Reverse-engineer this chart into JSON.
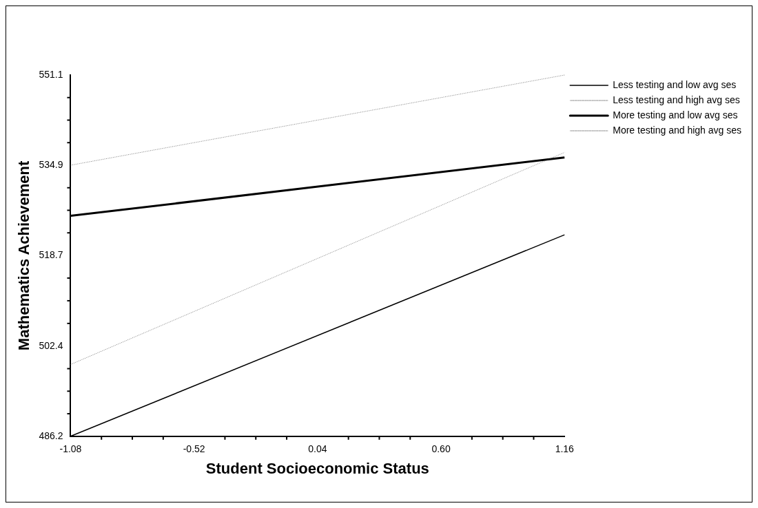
{
  "chart_data": {
    "type": "line",
    "xlabel": "Student Socioeconomic Status",
    "ylabel": "Mathematics Achievement",
    "x": [
      -1.08,
      1.16
    ],
    "series": [
      {
        "name": "Less testing and low avg ses",
        "color": "#000000",
        "values": [
          486.2,
          522.4
        ],
        "line_style": "solid"
      },
      {
        "name": "Less testing and high avg ses",
        "color": "#555555",
        "values": [
          499.1,
          537.2
        ],
        "line_style": "dotted"
      },
      {
        "name": "More testing and low avg ses",
        "color": "#000000",
        "values": [
          525.8,
          536.3
        ],
        "line_style": "solid"
      },
      {
        "name": "More testing and high avg ses",
        "color": "#555555",
        "values": [
          534.9,
          551.1
        ],
        "line_style": "dotted"
      }
    ],
    "xlim": [
      -1.08,
      1.16
    ],
    "xticks": [
      -1.08,
      -0.52,
      0.04,
      {
        "value": 0.6,
        "label": "0.60"
      },
      1.16
    ],
    "ylim": [
      486.2,
      551.1
    ],
    "yticks": [
      486.2,
      502.4,
      518.7,
      534.9,
      551.1
    ],
    "grid": false,
    "legend": "right",
    "marker": "none"
  }
}
